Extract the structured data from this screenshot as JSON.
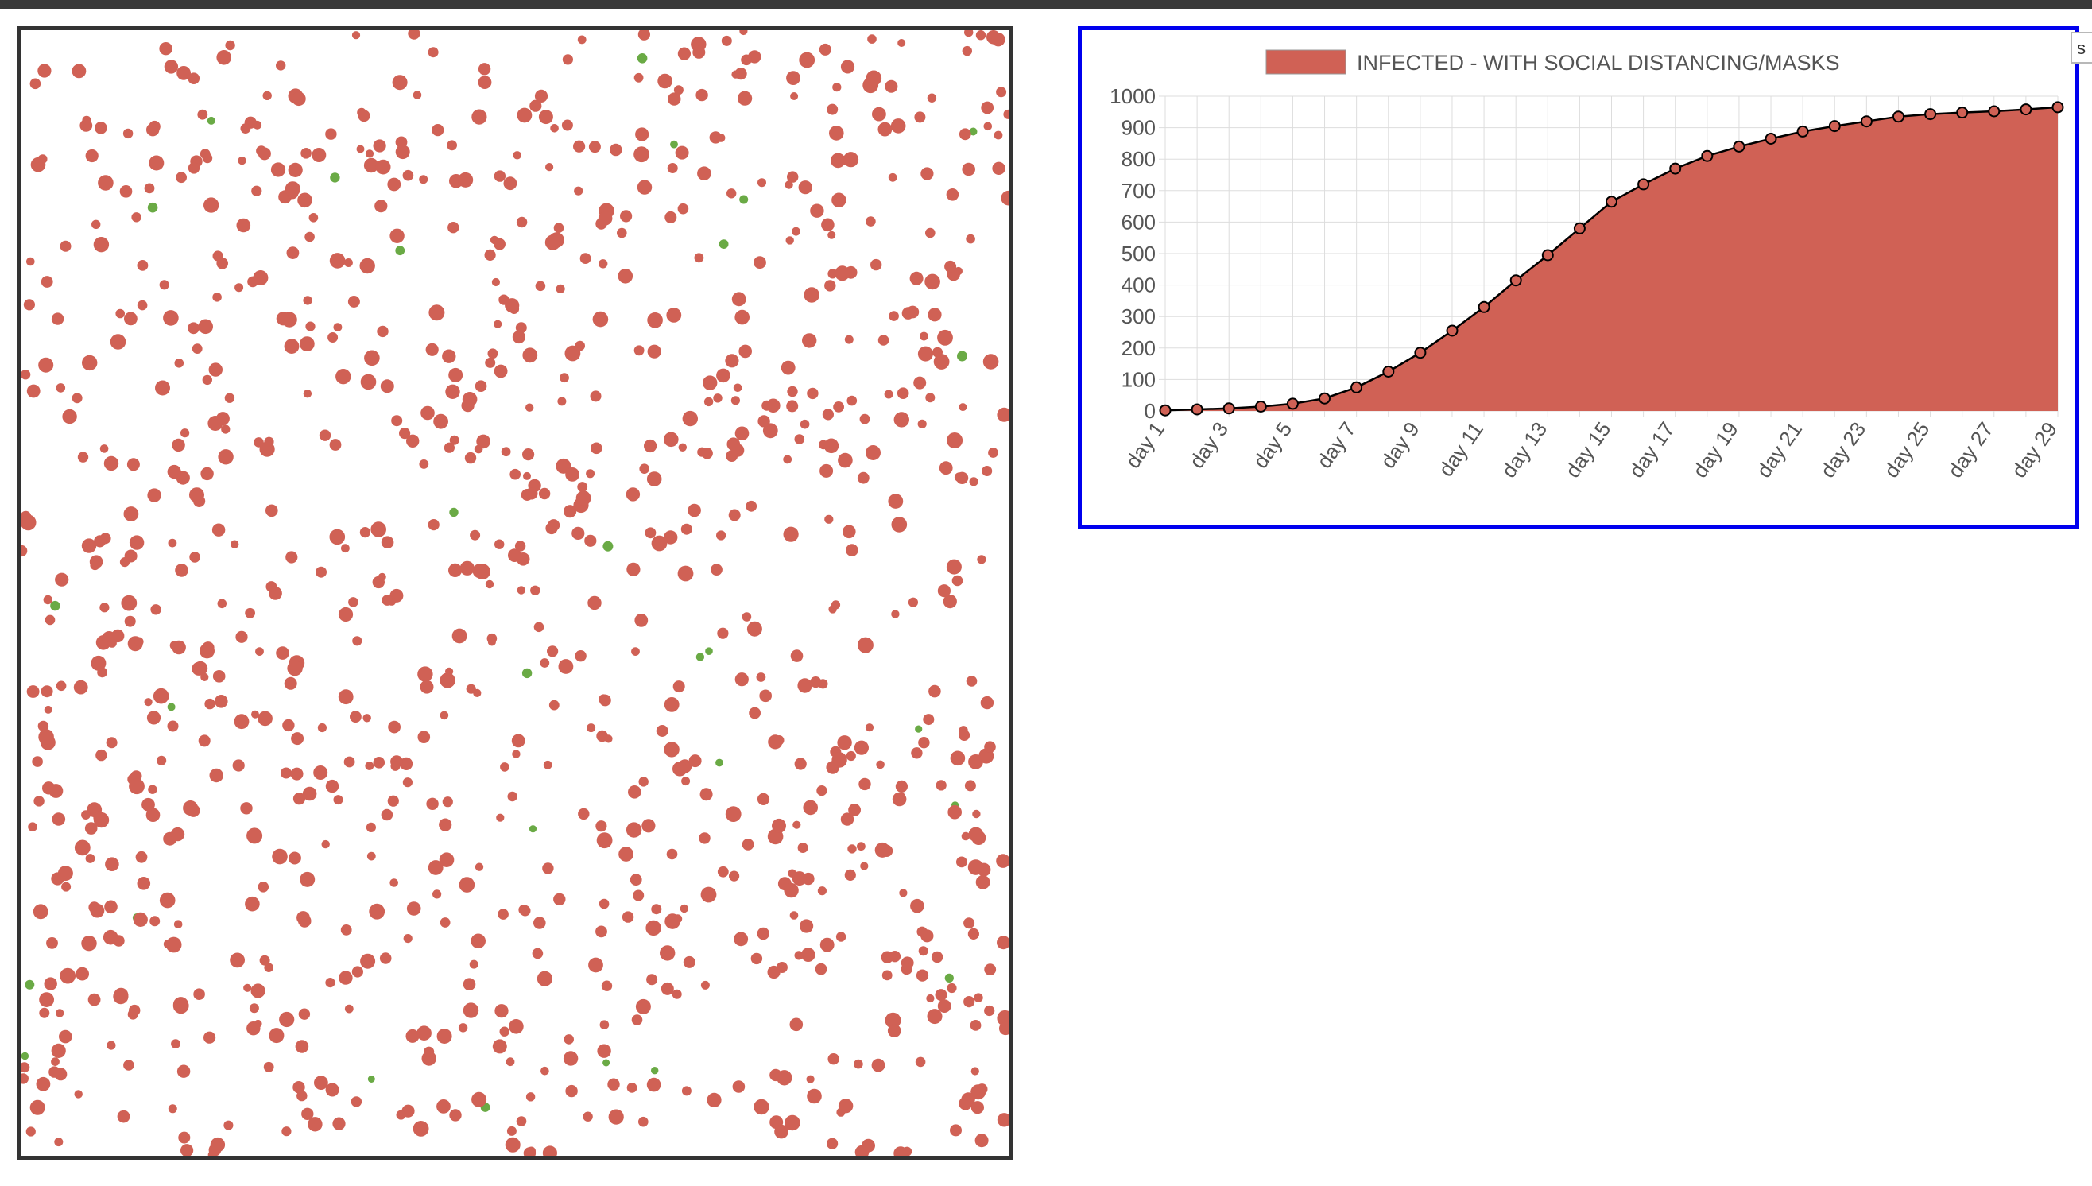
{
  "colors": {
    "infected": "#d06155",
    "healthy": "#6aaa45",
    "line": "#000000",
    "grid": "#dddddd",
    "panel_border": "#0000ee",
    "canvas_border": "#333333"
  },
  "simulation": {
    "population_total": 1000,
    "infected_count": 970,
    "healthy_count": 30
  },
  "side_tab": {
    "label": "s"
  },
  "chart_data": {
    "type": "area",
    "title": "",
    "xlabel": "",
    "ylabel": "",
    "legend": {
      "label": "INFECTED - WITH SOCIAL DISTANCING/MASKS",
      "position": "top"
    },
    "series": [
      {
        "name": "INFECTED - WITH SOCIAL DISTANCING/MASKS",
        "values": [
          2,
          5,
          8,
          14,
          23,
          40,
          75,
          125,
          185,
          255,
          330,
          415,
          495,
          580,
          665,
          720,
          770,
          810,
          840,
          865,
          888,
          905,
          920,
          935,
          943,
          948,
          952,
          958,
          965
        ]
      }
    ],
    "categories": [
      "day 1",
      "day 2",
      "day 3",
      "day 4",
      "day 5",
      "day 6",
      "day 7",
      "day 8",
      "day 9",
      "day 10",
      "day 11",
      "day 12",
      "day 13",
      "day 14",
      "day 15",
      "day 16",
      "day 17",
      "day 18",
      "day 19",
      "day 20",
      "day 21",
      "day 22",
      "day 23",
      "day 24",
      "day 25",
      "day 26",
      "day 27",
      "day 28",
      "day 29"
    ],
    "x_tick_labels": [
      "day 1",
      "day 3",
      "day 5",
      "day 7",
      "day 9",
      "day 11",
      "day 13",
      "day 15",
      "day 17",
      "day 19",
      "day 21",
      "day 23",
      "day 25",
      "day 27",
      "day 29"
    ],
    "y_tick_labels": [
      "0",
      "100",
      "200",
      "300",
      "400",
      "500",
      "600",
      "700",
      "800",
      "900",
      "1000"
    ],
    "ylim": [
      0,
      1000
    ],
    "grid": true
  }
}
